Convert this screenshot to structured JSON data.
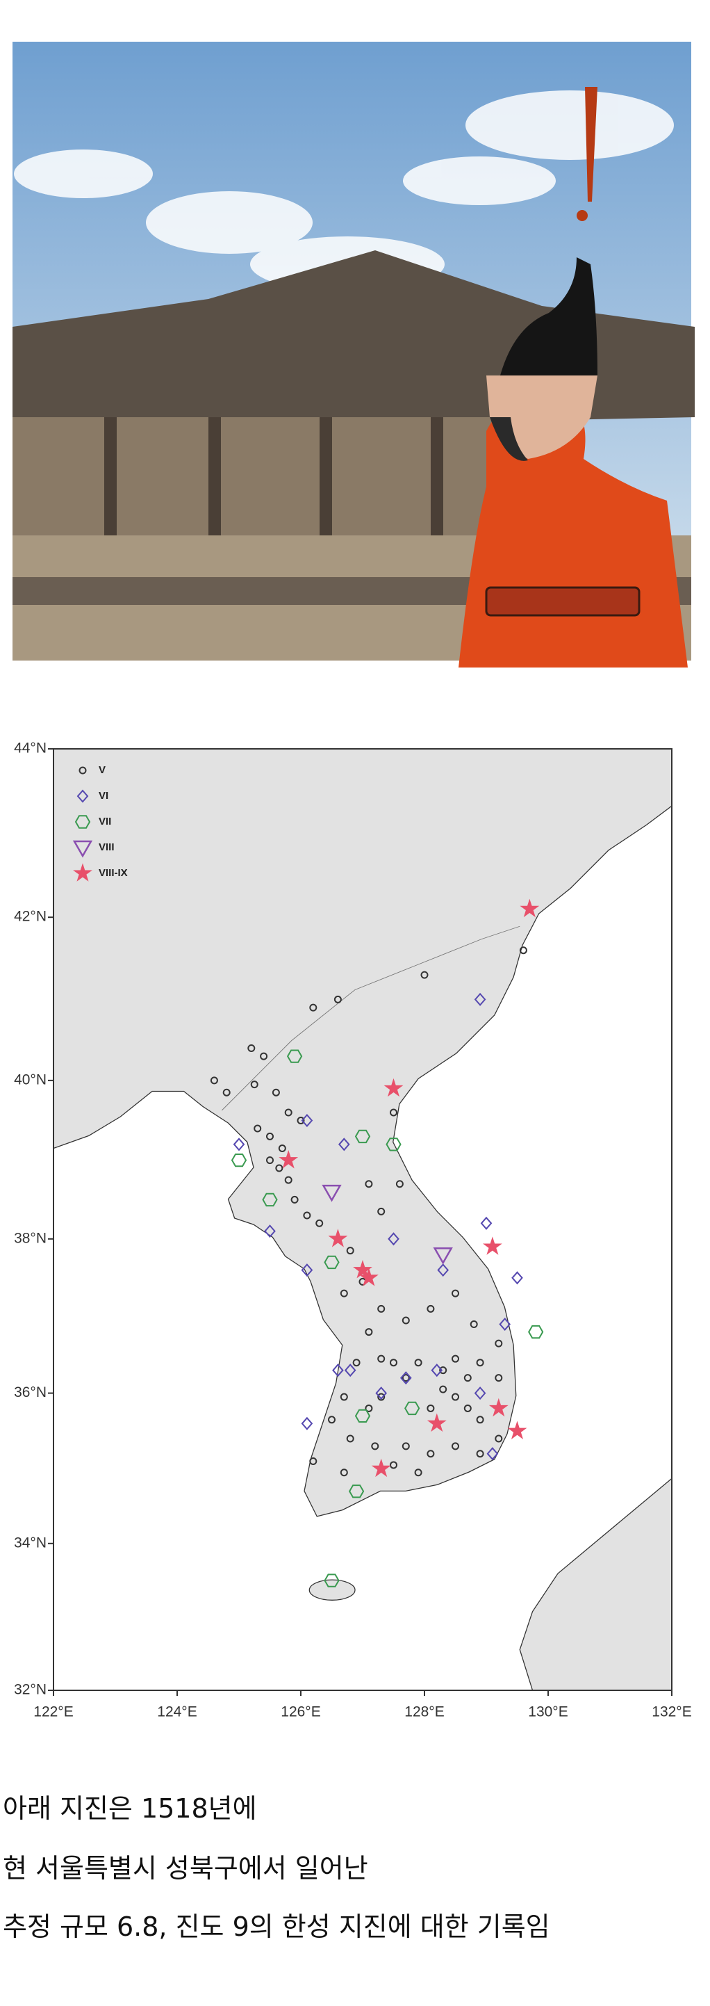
{
  "chart_data": {
    "type": "scatter",
    "projection": "mercator",
    "xlim": [
      122,
      132
    ],
    "ylim": [
      32,
      44
    ],
    "xticks": [
      {
        "value": 122,
        "label": "122°E"
      },
      {
        "value": 124,
        "label": "124°E"
      },
      {
        "value": 126,
        "label": "126°E"
      },
      {
        "value": 128,
        "label": "128°E"
      },
      {
        "value": 130,
        "label": "130°E"
      },
      {
        "value": 132,
        "label": "132°E"
      }
    ],
    "yticks": [
      {
        "value": 32,
        "label": "32°N"
      },
      {
        "value": 34,
        "label": "34°N"
      },
      {
        "value": 36,
        "label": "36°N"
      },
      {
        "value": 38,
        "label": "38°N"
      },
      {
        "value": 40,
        "label": "40°N"
      },
      {
        "value": 42,
        "label": "42°N"
      },
      {
        "value": 44,
        "label": "44°N"
      }
    ],
    "series": [
      {
        "name": "V",
        "marker": "circle",
        "color": "#333333",
        "x": [
          128.0,
          126.2,
          126.6,
          129.6,
          125.2,
          125.4,
          124.6,
          124.8,
          125.25,
          125.6,
          125.8,
          126.0,
          125.3,
          125.5,
          125.7,
          125.5,
          125.65,
          125.8,
          125.9,
          126.1,
          126.3,
          127.1,
          127.6,
          127.5,
          127.3,
          126.8,
          127.0,
          126.7,
          127.3,
          127.7,
          128.1,
          128.5,
          128.8,
          127.1,
          126.9,
          127.3,
          127.5,
          127.7,
          127.9,
          128.3,
          128.5,
          128.7,
          128.9,
          128.3,
          128.5,
          128.7,
          128.9,
          128.1,
          127.3,
          127.1,
          126.7,
          126.5,
          126.8,
          127.2,
          127.7,
          128.1,
          128.5,
          128.9,
          129.2,
          126.7,
          126.2,
          127.5,
          127.9,
          129.2,
          129.2
        ],
        "y": [
          41.3,
          40.9,
          41.0,
          41.6,
          40.4,
          40.3,
          40.0,
          39.85,
          39.95,
          39.85,
          39.6,
          39.5,
          39.4,
          39.3,
          39.15,
          39.0,
          38.9,
          38.75,
          38.5,
          38.3,
          38.2,
          38.7,
          38.7,
          39.6,
          38.35,
          37.85,
          37.45,
          37.3,
          37.1,
          36.95,
          37.1,
          37.3,
          36.9,
          36.8,
          36.4,
          36.45,
          36.4,
          36.2,
          36.4,
          36.3,
          36.45,
          36.2,
          36.4,
          36.05,
          35.95,
          35.8,
          35.65,
          35.8,
          35.95,
          35.8,
          35.95,
          35.65,
          35.4,
          35.3,
          35.3,
          35.2,
          35.3,
          35.2,
          35.4,
          34.95,
          35.1,
          35.05,
          34.95,
          36.2,
          36.65
        ]
      },
      {
        "name": "VI",
        "marker": "diamond",
        "color": "#5548b0",
        "x": [
          128.9,
          125.0,
          126.1,
          126.7,
          125.5,
          126.1,
          127.5,
          128.3,
          129.0,
          129.5,
          129.3,
          128.9,
          129.1,
          126.8,
          127.7,
          128.2,
          127.3,
          126.1,
          126.6
        ],
        "y": [
          41.0,
          39.2,
          39.5,
          39.2,
          38.1,
          37.6,
          38.0,
          37.6,
          38.2,
          37.5,
          36.9,
          36.0,
          35.2,
          36.3,
          36.2,
          36.3,
          36.0,
          35.6,
          36.3
        ]
      },
      {
        "name": "VII",
        "marker": "hexagon",
        "color": "#3a9a50",
        "x": [
          125.9,
          127.0,
          127.5,
          125.0,
          125.5,
          126.5,
          129.8,
          127.8,
          127.0,
          126.9,
          126.5
        ],
        "y": [
          40.3,
          39.3,
          39.2,
          39.0,
          38.5,
          37.7,
          36.8,
          35.8,
          35.7,
          34.7,
          33.5
        ]
      },
      {
        "name": "VIII",
        "marker": "triangle",
        "color": "#8a4fb0",
        "x": [
          126.5,
          128.3
        ],
        "y": [
          38.6,
          37.8
        ]
      },
      {
        "name": "VIII-IX",
        "marker": "star",
        "color": "#e8506a",
        "x": [
          129.7,
          127.5,
          125.8,
          126.6,
          127.0,
          127.1,
          129.1,
          128.2,
          129.2,
          129.5,
          127.3
        ],
        "y": [
          42.1,
          39.9,
          39.0,
          38.0,
          37.6,
          37.5,
          37.9,
          35.6,
          35.8,
          35.5,
          35.0
        ]
      }
    ]
  },
  "caption": {
    "lines": [
      "아래 지진은 1518년에",
      "현 서울특별시 성북구에서 일어난",
      "추정 규모 6.8, 진도 9의 한성 지진에 대한 기록임"
    ]
  }
}
